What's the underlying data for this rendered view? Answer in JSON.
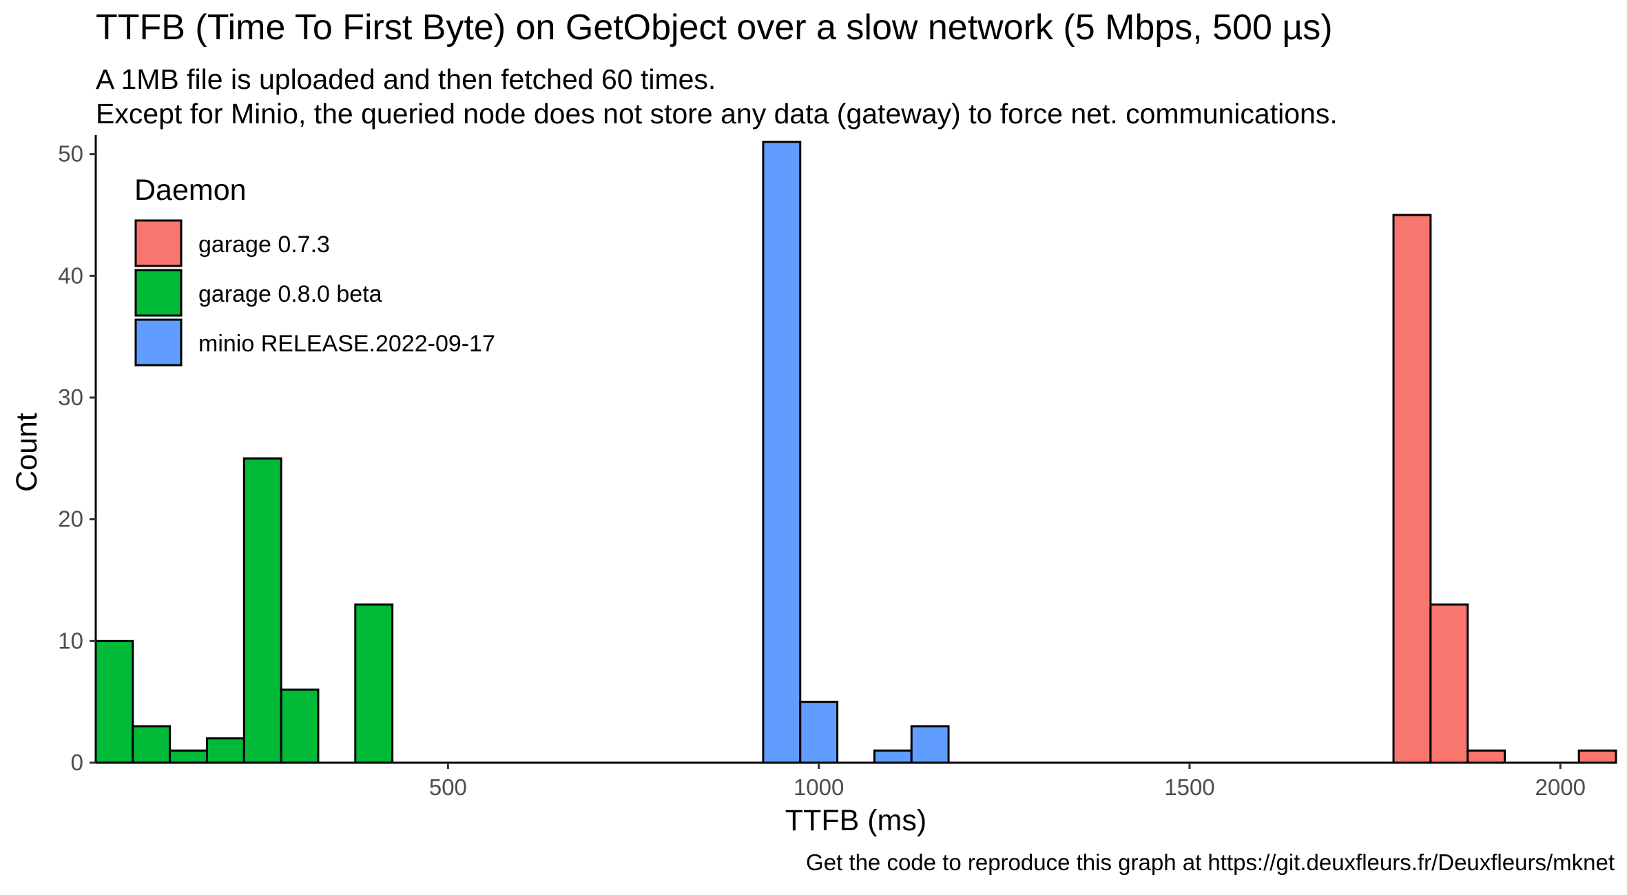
{
  "title": "TTFB (Time To First Byte) on GetObject over a slow network (5 Mbps, 500 µs)",
  "subtitle_lines": [
    "A 1MB file is uploaded and then fetched 60 times.",
    "Except for Minio, the queried node does not store any data (gateway) to force net. communications."
  ],
  "caption": "Get the code to reproduce this graph at https://git.deuxfleurs.fr/Deuxfleurs/mknet",
  "chart_data": {
    "type": "bar",
    "subtype": "histogram",
    "xlabel": "TTFB (ms)",
    "ylabel": "Count",
    "xlim": [
      25,
      2075
    ],
    "ylim": [
      0,
      51
    ],
    "x_ticks": [
      500,
      1000,
      1500,
      2000
    ],
    "y_ticks": [
      0,
      10,
      20,
      30,
      40,
      50
    ],
    "bin_width": 50,
    "grid": false,
    "legend": {
      "title": "Daemon",
      "placement": "top-left inside plot"
    },
    "series": [
      {
        "name": "garage 0.7.3",
        "color": "#F8766D",
        "bins": [
          {
            "x0": 1775,
            "x1": 1825,
            "count": 45
          },
          {
            "x0": 1825,
            "x1": 1875,
            "count": 13
          },
          {
            "x0": 1875,
            "x1": 1925,
            "count": 1
          },
          {
            "x0": 2025,
            "x1": 2075,
            "count": 1
          }
        ]
      },
      {
        "name": "garage 0.8.0 beta",
        "color": "#00BA38",
        "bins": [
          {
            "x0": 25,
            "x1": 75,
            "count": 10
          },
          {
            "x0": 75,
            "x1": 125,
            "count": 3
          },
          {
            "x0": 125,
            "x1": 175,
            "count": 1
          },
          {
            "x0": 175,
            "x1": 225,
            "count": 2
          },
          {
            "x0": 225,
            "x1": 275,
            "count": 25
          },
          {
            "x0": 275,
            "x1": 325,
            "count": 6
          },
          {
            "x0": 375,
            "x1": 425,
            "count": 13
          }
        ]
      },
      {
        "name": "minio RELEASE.2022-09-17",
        "color": "#619CFF",
        "bins": [
          {
            "x0": 925,
            "x1": 975,
            "count": 51
          },
          {
            "x0": 975,
            "x1": 1025,
            "count": 5
          },
          {
            "x0": 1075,
            "x1": 1125,
            "count": 1
          },
          {
            "x0": 1125,
            "x1": 1175,
            "count": 3
          }
        ]
      }
    ]
  }
}
